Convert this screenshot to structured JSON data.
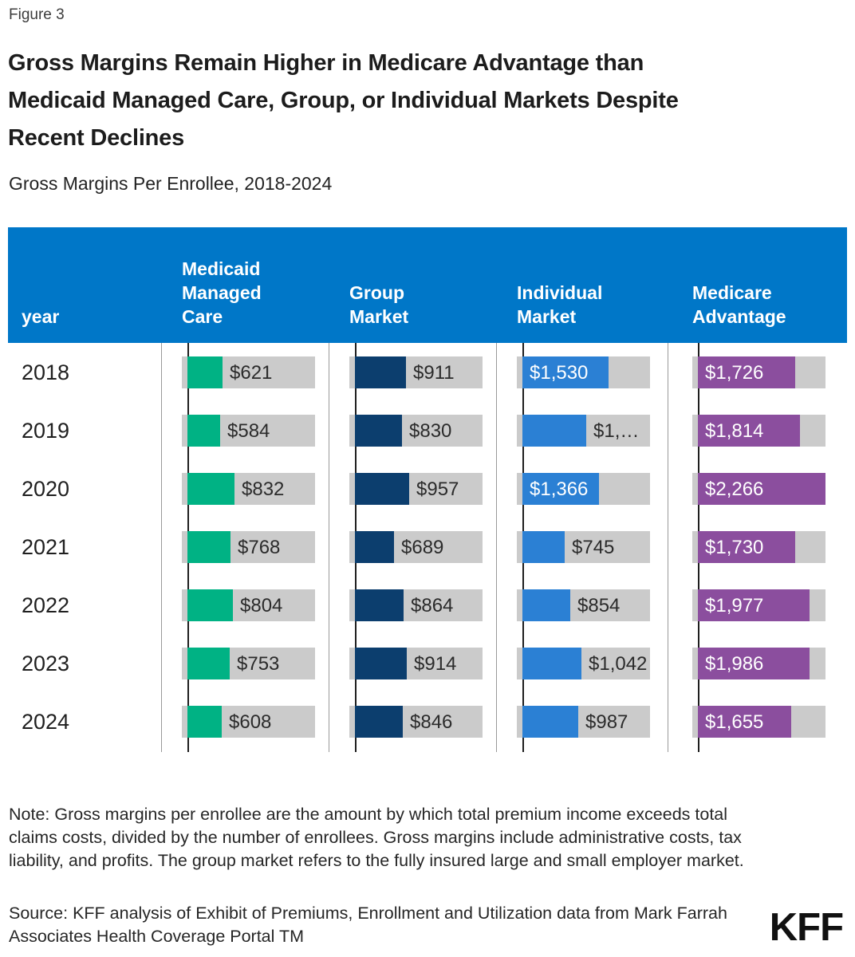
{
  "figure_label": "Figure 3",
  "title": "Gross Margins Remain Higher in Medicare Advantage than\nMedicaid Managed Care, Group, or Individual Markets Despite\nRecent Declines",
  "subtitle": "Gross Margins Per Enrollee, 2018-2024",
  "table": {
    "header": {
      "year": "year",
      "columns": [
        "Medicaid\nManaged\nCare",
        "Group\nMarket",
        "Individual\nMarket",
        "Medicare\nAdvantage"
      ]
    },
    "rows": [
      {
        "year": "2018",
        "cells": [
          {
            "label": "$621",
            "value": 621
          },
          {
            "label": "$911",
            "value": 911
          },
          {
            "label": "$1,530",
            "value": 1530
          },
          {
            "label": "$1,726",
            "value": 1726
          }
        ]
      },
      {
        "year": "2019",
        "cells": [
          {
            "label": "$584",
            "value": 584
          },
          {
            "label": "$830",
            "value": 830
          },
          {
            "label": "$1,…",
            "value": 1133
          },
          {
            "label": "$1,814",
            "value": 1814
          }
        ]
      },
      {
        "year": "2020",
        "cells": [
          {
            "label": "$832",
            "value": 832
          },
          {
            "label": "$957",
            "value": 957
          },
          {
            "label": "$1,366",
            "value": 1366
          },
          {
            "label": "$2,266",
            "value": 2266
          }
        ]
      },
      {
        "year": "2021",
        "cells": [
          {
            "label": "$768",
            "value": 768
          },
          {
            "label": "$689",
            "value": 689
          },
          {
            "label": "$745",
            "value": 745
          },
          {
            "label": "$1,730",
            "value": 1730
          }
        ]
      },
      {
        "year": "2022",
        "cells": [
          {
            "label": "$804",
            "value": 804
          },
          {
            "label": "$864",
            "value": 864
          },
          {
            "label": "$854",
            "value": 854
          },
          {
            "label": "$1,977",
            "value": 1977
          }
        ]
      },
      {
        "year": "2023",
        "cells": [
          {
            "label": "$753",
            "value": 753
          },
          {
            "label": "$914",
            "value": 914
          },
          {
            "label": "$1,042",
            "value": 1042
          },
          {
            "label": "$1,986",
            "value": 1986
          }
        ]
      },
      {
        "year": "2024",
        "cells": [
          {
            "label": "$608",
            "value": 608
          },
          {
            "label": "$846",
            "value": 846
          },
          {
            "label": "$987",
            "value": 987
          },
          {
            "label": "$1,655",
            "value": 1655
          }
        ]
      }
    ]
  },
  "note": "Note: Gross margins per enrollee are the amount by which total premium income exceeds total claims costs, divided by the number of enrollees. Gross margins include administrative costs, tax liability, and profits. The group market refers to the fully insured large and small employer market.",
  "source": "Source: KFF analysis of Exhibit of Premiums, Enrollment and Utilization data from Mark Farrah Associates Health Coverage Portal TM",
  "logo": "KFF",
  "colors": {
    "header_bg": "#0077C8",
    "track_gray": "#CBCBCB",
    "separator_gray": "#9A9A9A",
    "axis_black": "#1F1F1F",
    "inside_label": "#FFFFFF",
    "outside_label": "#2B2B2B"
  },
  "chart_data": {
    "type": "bar",
    "orientation": "horizontal",
    "title": "Gross Margins Remain Higher in Medicare Advantage than Medicaid Managed Care, Group, or Individual Markets Despite Recent Declines",
    "subtitle": "Gross Margins Per Enrollee, 2018-2024",
    "categories": [
      "2018",
      "2019",
      "2020",
      "2021",
      "2022",
      "2023",
      "2024"
    ],
    "series": [
      {
        "name": "Medicaid Managed Care",
        "color": "#00B284",
        "values": [
          621,
          584,
          832,
          768,
          804,
          753,
          608
        ],
        "labels": [
          "$621",
          "$584",
          "$832",
          "$768",
          "$804",
          "$753",
          "$608"
        ]
      },
      {
        "name": "Group Market",
        "color": "#0C3E6E",
        "values": [
          911,
          830,
          957,
          689,
          864,
          914,
          846
        ],
        "labels": [
          "$911",
          "$830",
          "$957",
          "$689",
          "$864",
          "$914",
          "$846"
        ]
      },
      {
        "name": "Individual Market",
        "color": "#2B80D4",
        "values": [
          1530,
          1133,
          1366,
          745,
          854,
          1042,
          987
        ],
        "labels": [
          "$1,530",
          "$1,…",
          "$1,366",
          "$745",
          "$854",
          "$1,042",
          "$987"
        ],
        "note": "2019 label truncated on screen; bar value estimated from bar length"
      },
      {
        "name": "Medicare Advantage",
        "color": "#8B4E9E",
        "values": [
          1726,
          1814,
          2266,
          1730,
          1977,
          1986,
          1655
        ],
        "labels": [
          "$1,726",
          "$1,814",
          "$2,266",
          "$1,730",
          "$1,977",
          "$1,986",
          "$1,655"
        ]
      }
    ],
    "xmax": 2266,
    "grid": false,
    "legend_position": "column headers"
  }
}
